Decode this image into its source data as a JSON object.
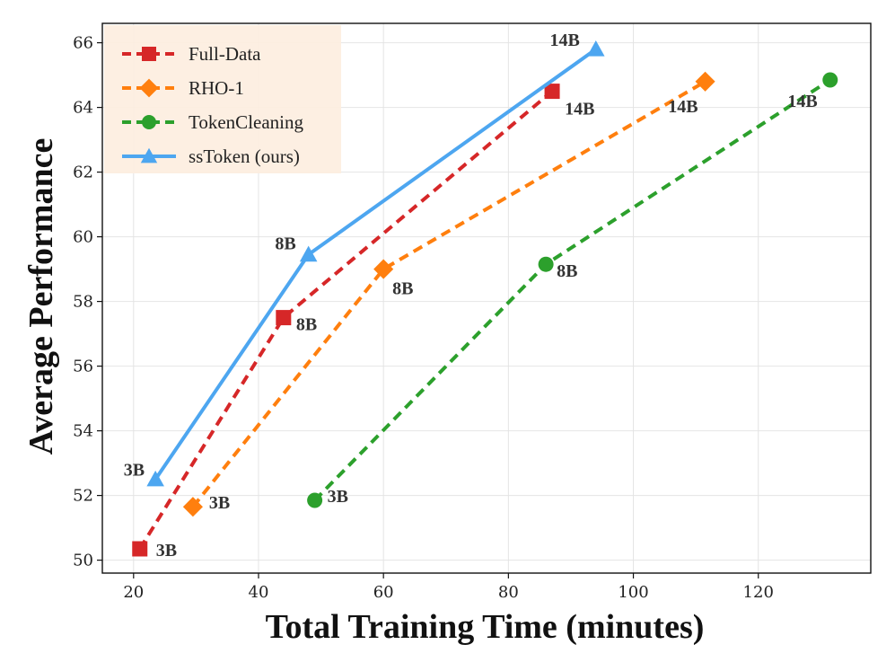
{
  "chart_data": {
    "type": "line",
    "title": "",
    "xlabel": "Total Training Time (minutes)",
    "ylabel": "Average Performance",
    "xlim": [
      15,
      138
    ],
    "ylim": [
      49.6,
      66.6
    ],
    "xticks": [
      20,
      40,
      60,
      80,
      100,
      120
    ],
    "yticks": [
      50,
      52,
      54,
      56,
      58,
      60,
      62,
      64,
      66
    ],
    "grid": true,
    "legend_position": "top-left",
    "series": [
      {
        "name": "Full-Data",
        "color": "#d62728",
        "marker": "square",
        "dashed": true,
        "x": [
          21,
          44,
          87
        ],
        "y": [
          50.35,
          57.5,
          64.5
        ],
        "labels": [
          "3B",
          "8B",
          "14B"
        ]
      },
      {
        "name": "RHO-1",
        "color": "#ff7f0e",
        "marker": "diamond",
        "dashed": true,
        "x": [
          29.5,
          60,
          111.5
        ],
        "y": [
          51.65,
          59.0,
          64.8
        ],
        "labels": [
          "3B",
          "8B",
          "14B"
        ]
      },
      {
        "name": "TokenCleaning",
        "color": "#2ca02c",
        "marker": "circle",
        "dashed": true,
        "x": [
          49,
          86,
          131.5
        ],
        "y": [
          51.85,
          59.15,
          64.85
        ],
        "labels": [
          "3B",
          "8B",
          "14B"
        ]
      },
      {
        "name": "ssToken (ours)",
        "color": "#4da6f0",
        "marker": "triangle",
        "dashed": false,
        "x": [
          23.5,
          48,
          94
        ],
        "y": [
          52.5,
          59.45,
          65.8
        ],
        "labels": [
          "3B",
          "8B",
          "14B"
        ]
      }
    ]
  }
}
